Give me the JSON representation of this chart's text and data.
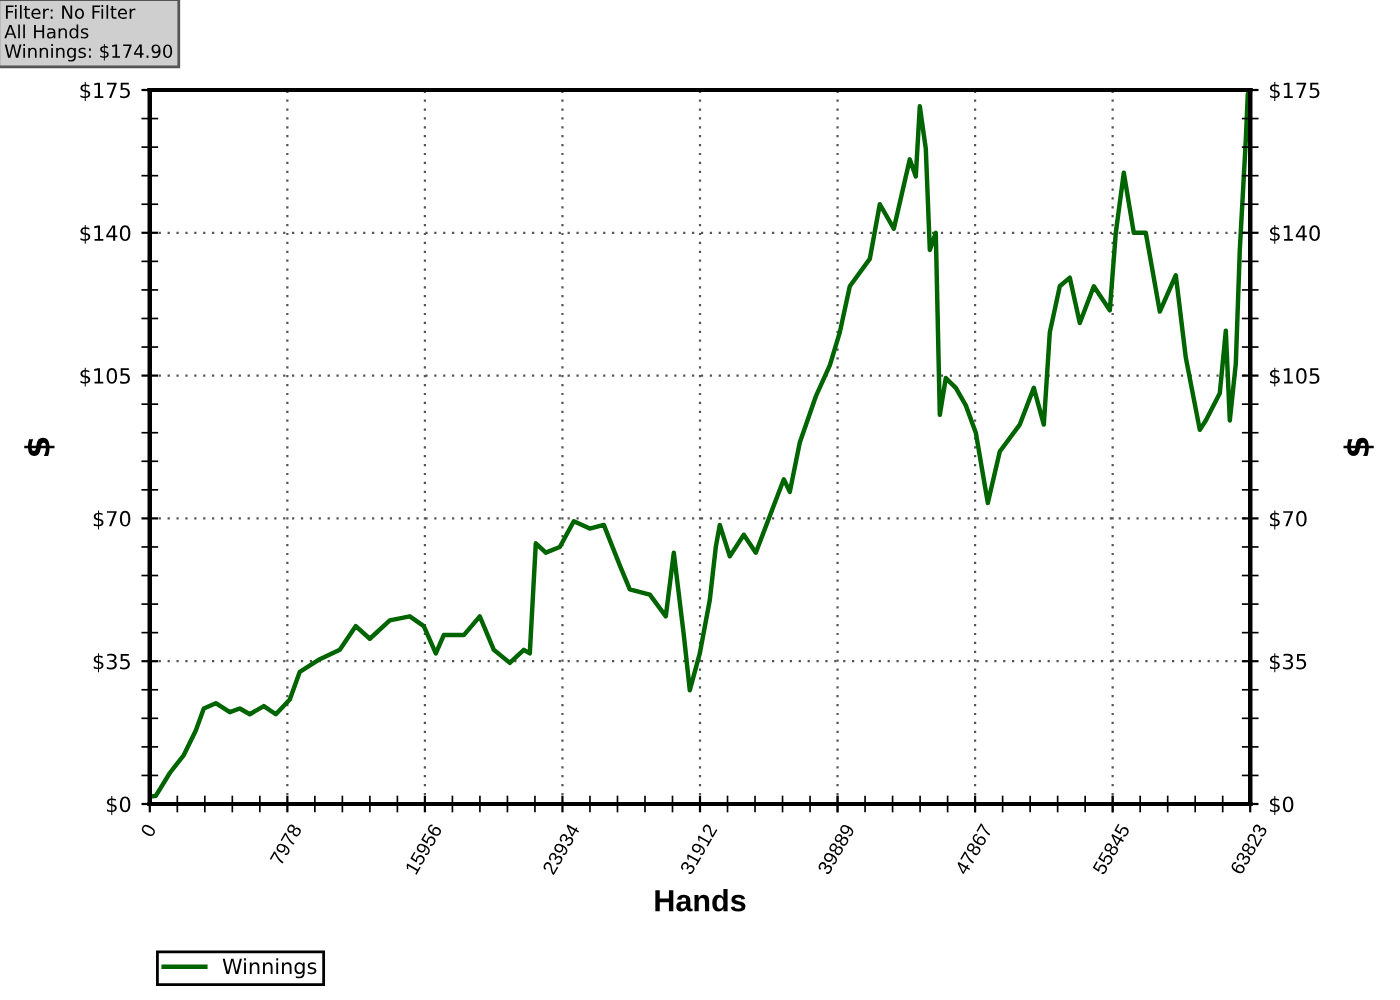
{
  "chart_data": {
    "type": "line",
    "xlabel": "Hands",
    "ylabel": "$",
    "y2label": "$",
    "annotations": [
      "Filter: No Filter",
      "All Hands",
      "Winnings: $174.90"
    ],
    "series": [
      {
        "name": "Winnings",
        "color": "#006400",
        "axis": "y",
        "x": [
          0,
          348,
          1160,
          1972,
          2668,
          3132,
          3828,
          4640,
          5220,
          5800,
          6612,
          7308,
          8120,
          8700,
          9860,
          11020,
          11948,
          12760,
          13920,
          15080,
          15892,
          16588,
          17052,
          18212,
          19140,
          19952,
          20880,
          21692,
          22040,
          22388,
          22968,
          23780,
          24592,
          25520,
          26332,
          27260,
          27840,
          29000,
          29928,
          30392,
          30972,
          31320,
          31900,
          32480,
          32828,
          33060,
          33640,
          34452,
          35148,
          35960,
          36772,
          37120,
          37700,
          38628,
          39440,
          40020,
          40600,
          41760,
          42340,
          43152,
          44080,
          44428,
          44660,
          45008,
          45240,
          45588,
          45820,
          46168,
          46748,
          47328,
          47908,
          48604,
          49300,
          50460,
          51272,
          51852,
          52200,
          52780,
          53360,
          53940,
          54752,
          55680,
          56028,
          56492,
          57072,
          57768,
          58580,
          59508,
          60088,
          60900,
          61248,
          62060,
          62408,
          62640,
          62988,
          63220,
          63568,
          63684,
          63823
        ],
        "values": [
          1.8,
          2,
          7.6,
          12,
          18,
          23.4,
          24.7,
          22.5,
          23.4,
          22,
          24,
          22,
          25.6,
          32.4,
          35.5,
          37.8,
          43.6,
          40.5,
          45,
          46,
          43.6,
          36.9,
          41.4,
          41.4,
          46,
          37.8,
          34.6,
          37.8,
          36.9,
          63.9,
          61.6,
          63,
          69.3,
          67.5,
          68.4,
          58.5,
          52.6,
          51.3,
          46,
          61.6,
          41.4,
          27.9,
          36.9,
          50,
          63,
          68.4,
          60.7,
          66,
          61.6,
          70.6,
          79.6,
          76.5,
          88.6,
          99.9,
          107.5,
          115.6,
          126.9,
          133.6,
          147,
          141,
          158,
          153.8,
          171,
          160.6,
          135.8,
          140,
          95.4,
          104.4,
          102,
          97.7,
          91,
          73.8,
          86.4,
          93,
          102,
          93,
          115.6,
          126.9,
          129,
          117.9,
          126.9,
          121,
          140,
          154.7,
          140,
          140,
          120.7,
          129.6,
          109.4,
          91.7,
          94,
          100.7,
          116,
          94,
          107.9,
          135.8,
          162.8,
          174,
          174.9
        ]
      }
    ],
    "xlim": [
      0,
      63823
    ],
    "xticks": [
      0,
      7978,
      15956,
      23934,
      31912,
      39889,
      47867,
      55845,
      63823
    ],
    "ylim": [
      0,
      175
    ],
    "yticks": [
      {
        "value": 0,
        "label": "$0"
      },
      {
        "value": 35,
        "label": "$35"
      },
      {
        "value": 70,
        "label": "$70"
      },
      {
        "value": 105,
        "label": "$105"
      },
      {
        "value": 140,
        "label": "$140"
      },
      {
        "value": 175,
        "label": "$175"
      }
    ],
    "y2lim": [
      0,
      175
    ],
    "y2ticks": [
      {
        "value": 0,
        "label": "$0"
      },
      {
        "value": 35,
        "label": "$35"
      },
      {
        "value": 70,
        "label": "$70"
      },
      {
        "value": 105,
        "label": "$105"
      },
      {
        "value": 140,
        "label": "$140"
      },
      {
        "value": 175,
        "label": "$175"
      }
    ],
    "grid": true,
    "legend": "bottom left",
    "line_style": "solid",
    "marker": "none"
  }
}
